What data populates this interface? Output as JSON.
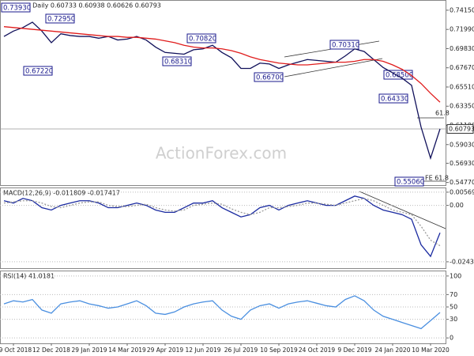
{
  "chart_data": [
    {
      "type": "line",
      "title": "AUDUSD Daily 0.60733 0.60938 0.60626 0.60793",
      "series": [
        {
          "color": "#10105a",
          "values": [
            0.712,
            0.718,
            0.722,
            0.728,
            0.718,
            0.705,
            0.715,
            0.713,
            0.712,
            0.712,
            0.71,
            0.712,
            0.708,
            0.709,
            0.712,
            0.708,
            0.7,
            0.694,
            0.693,
            0.692,
            0.697,
            0.698,
            0.702,
            0.694,
            0.688,
            0.676,
            0.676,
            0.682,
            0.681,
            0.676,
            0.68,
            0.683,
            0.686,
            0.685,
            0.684,
            0.683,
            0.69,
            0.698,
            0.695,
            0.686,
            0.677,
            0.671,
            0.665,
            0.657,
            0.61,
            0.575,
            0.60793
          ]
        },
        {
          "color": "#e01c1c",
          "values": [
            0.723,
            0.722,
            0.721,
            0.72,
            0.719,
            0.718,
            0.717,
            0.716,
            0.715,
            0.714,
            0.713,
            0.712,
            0.712,
            0.711,
            0.711,
            0.71,
            0.709,
            0.707,
            0.705,
            0.702,
            0.7,
            0.699,
            0.699,
            0.698,
            0.696,
            0.693,
            0.689,
            0.686,
            0.684,
            0.682,
            0.681,
            0.68,
            0.68,
            0.681,
            0.682,
            0.683,
            0.683,
            0.684,
            0.686,
            0.686,
            0.684,
            0.68,
            0.675,
            0.668,
            0.659,
            0.648,
            0.638
          ]
        }
      ],
      "last_value": 0.60793,
      "ylim": [
        0.5447,
        0.7521
      ],
      "yticks": [
        {
          "value": 0.7415,
          "label": "0.74150"
        },
        {
          "value": 0.7199,
          "label": "0.71990"
        },
        {
          "value": 0.6983,
          "label": "0.69830"
        },
        {
          "value": 0.6767,
          "label": "0.67670"
        },
        {
          "value": 0.6551,
          "label": "0.65510"
        },
        {
          "value": 0.6335,
          "label": "0.63350"
        },
        {
          "value": 0.6119,
          "label": "0.61190"
        },
        {
          "value": 0.5903,
          "label": "0.59030"
        },
        {
          "value": 0.5693,
          "label": "0.56930"
        },
        {
          "value": 0.5477,
          "label": "0.54770"
        }
      ],
      "annotations": [
        "0.73930",
        "0.72950",
        "0.67220",
        "0.70820",
        "0.68310",
        "0.66700",
        "0.70310",
        "0.68500",
        "0.64330",
        "0.55060",
        "61.8",
        "FE 61.8"
      ],
      "watermark": "ActionForex.com",
      "grid": false
    },
    {
      "type": "line",
      "title": "MACD(12,26,9) -0.011809 -0.017417",
      "series": [
        {
          "color": "#1a2aa0",
          "values": [
            0.002,
            0.001,
            0.003,
            0.002,
            -0.001,
            -0.002,
            0.0,
            0.001,
            0.002,
            0.002,
            0.001,
            -0.001,
            -0.001,
            0.0,
            0.001,
            0.0,
            -0.002,
            -0.003,
            -0.003,
            -0.001,
            0.001,
            0.001,
            0.002,
            -0.001,
            -0.003,
            -0.005,
            -0.004,
            -0.001,
            0.0,
            -0.002,
            0.0,
            0.001,
            0.002,
            0.001,
            0.0,
            0.0,
            0.002,
            0.004,
            0.003,
            0.0,
            -0.002,
            -0.003,
            -0.004,
            -0.006,
            -0.017,
            -0.022,
            -0.011809
          ]
        },
        {
          "color": "#9a9a9a",
          "values": [
            0.001,
            0.0015,
            0.002,
            0.002,
            0.001,
            -0.0005,
            -0.001,
            0,
            0.001,
            0.0015,
            0.0015,
            0,
            -0.0005,
            -0.0005,
            0,
            0.0005,
            -0.001,
            -0.002,
            -0.0025,
            -0.002,
            0,
            0.0005,
            0.001,
            0.0005,
            -0.0015,
            -0.003,
            -0.004,
            -0.003,
            -0.001,
            -0.001,
            -0.0005,
            0,
            0.001,
            0.001,
            0.0005,
            0,
            0.001,
            0.002,
            0.003,
            0.002,
            0,
            -0.002,
            -0.003,
            -0.004,
            -0.009,
            -0.015,
            -0.017417
          ]
        }
      ],
      "ylim": [
        -0.0271,
        0.00737
      ],
      "yticks": [
        0.005691,
        {
          "value": 0,
          "label": "0.00"
        },
        -0.024344
      ],
      "grid": true
    },
    {
      "type": "line",
      "title": "RSI(14) 41.0181",
      "categories": [
        null,
        "29 Oct 2018",
        null,
        null,
        null,
        "12 Dec 2018",
        null,
        null,
        null,
        "29 Jan 2019",
        null,
        null,
        null,
        "14 Mar 2019",
        null,
        null,
        null,
        "29 Apr 2019",
        null,
        null,
        null,
        "12 Jun 2019",
        null,
        null,
        null,
        "26 Jul 2019",
        null,
        null,
        null,
        "10 Sep 2019",
        null,
        null,
        null,
        "24 Oct 2019",
        null,
        null,
        null,
        "9 Dec 2019",
        null,
        null,
        null,
        "24 Jan 2020",
        null,
        null,
        null,
        "10 Mar 2020",
        null
      ],
      "series": [
        {
          "color": "#4a8fe0",
          "values": [
            55,
            60,
            58,
            62,
            45,
            40,
            55,
            58,
            60,
            55,
            52,
            48,
            50,
            55,
            60,
            52,
            40,
            38,
            42,
            50,
            55,
            58,
            60,
            45,
            35,
            30,
            45,
            52,
            55,
            48,
            55,
            58,
            60,
            56,
            52,
            50,
            62,
            68,
            60,
            45,
            35,
            30,
            25,
            20,
            15,
            28,
            41.0181
          ]
        }
      ],
      "ylim": [
        -8.75,
        107.5
      ],
      "yticks": [
        100,
        70,
        50,
        30,
        0
      ],
      "grid": true
    }
  ]
}
